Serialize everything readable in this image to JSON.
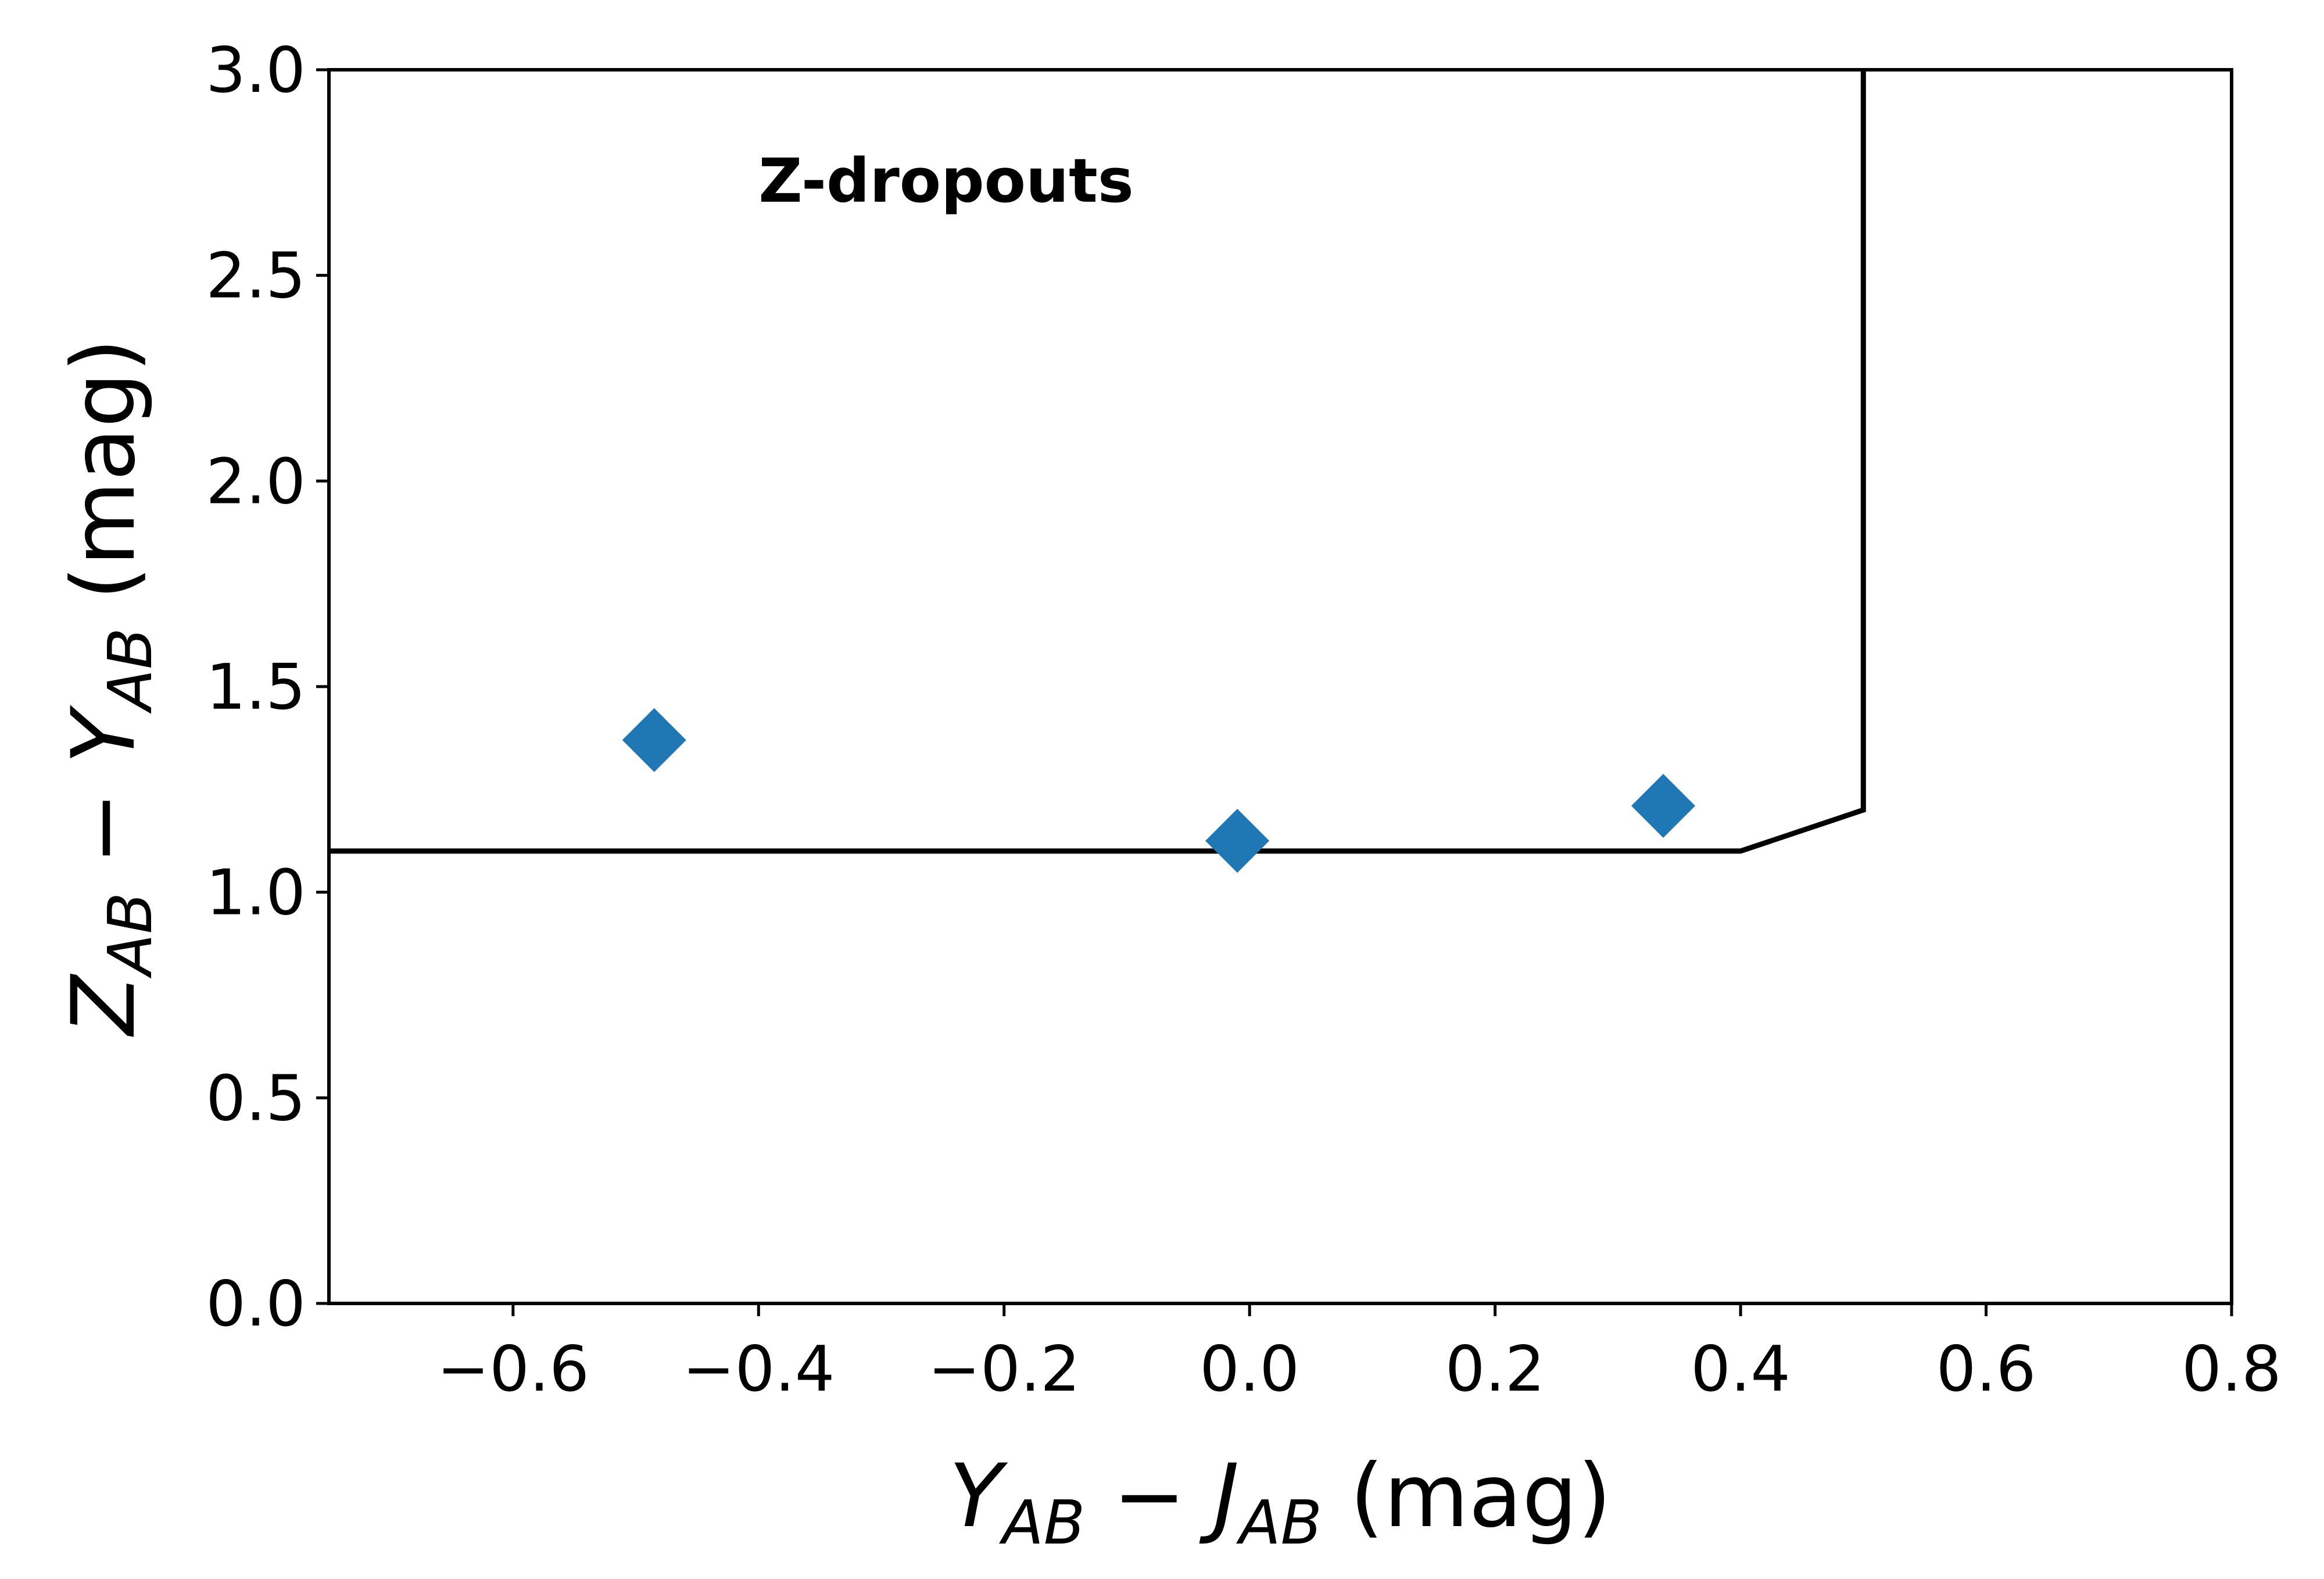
{
  "chart_data": {
    "type": "scatter",
    "title": "",
    "xlabel": {
      "parts": [
        [
          "i",
          "Y"
        ],
        [
          "sub",
          "AB"
        ],
        [
          "n",
          " − "
        ],
        [
          "i",
          "J"
        ],
        [
          "sub",
          "AB"
        ],
        [
          "n",
          " (mag)"
        ]
      ]
    },
    "ylabel": {
      "parts": [
        [
          "i",
          "Z"
        ],
        [
          "sub",
          "AB"
        ],
        [
          "n",
          " − "
        ],
        [
          "i",
          "Y"
        ],
        [
          "sub",
          "AB"
        ],
        [
          "n",
          " (mag)"
        ]
      ]
    },
    "xlim": [
      -0.75,
      0.8
    ],
    "ylim": [
      0.0,
      3.0
    ],
    "xticks": [
      -0.6,
      -0.4,
      -0.2,
      0.0,
      0.2,
      0.4,
      0.6,
      0.8
    ],
    "xtick_labels": [
      "−0.6",
      "−0.4",
      "−0.2",
      "0.0",
      "0.2",
      "0.4",
      "0.6",
      "0.8"
    ],
    "yticks": [
      0.0,
      0.5,
      1.0,
      1.5,
      2.0,
      2.5,
      3.0
    ],
    "ytick_labels": [
      "0.0",
      "0.5",
      "1.0",
      "1.5",
      "2.0",
      "2.5",
      "3.0"
    ],
    "grid": false,
    "annotation": {
      "text": "Z-dropouts",
      "x": -0.4,
      "y": 2.73
    },
    "series": [
      {
        "marker": "diamond",
        "color": "#1f77b4",
        "points": [
          {
            "x": -0.485,
            "y": 1.37
          },
          {
            "x": -0.01,
            "y": 1.125
          },
          {
            "x": 0.337,
            "y": 1.21
          }
        ]
      }
    ],
    "selection_boundary": {
      "color": "#000000",
      "points": [
        {
          "x": -0.75,
          "y": 1.1
        },
        {
          "x": 0.4,
          "y": 1.1
        },
        {
          "x": 0.5,
          "y": 1.2
        },
        {
          "x": 0.5,
          "y": 3.0
        }
      ]
    }
  }
}
